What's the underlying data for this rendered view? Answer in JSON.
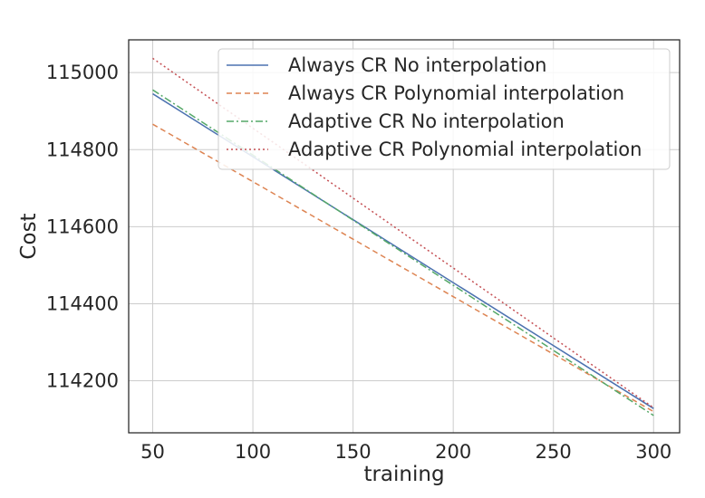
{
  "chart_data": {
    "type": "line",
    "title": "",
    "xlabel": "training",
    "ylabel": "Cost",
    "xlim": [
      38,
      313
    ],
    "ylim": [
      114065,
      115085
    ],
    "xticks": [
      50,
      100,
      150,
      200,
      250,
      300
    ],
    "yticks": [
      114200,
      114400,
      114600,
      114800,
      115000
    ],
    "grid": true,
    "legend_position": "top-right",
    "series": [
      {
        "name": "Always CR No interpolation",
        "color": "#4c72b0",
        "dash": "solid",
        "x": [
          50,
          300
        ],
        "y": [
          114945,
          114128
        ]
      },
      {
        "name": "Always CR Polynomial interpolation",
        "color": "#dd8452",
        "dash": "dashed",
        "x": [
          50,
          300
        ],
        "y": [
          114866,
          114120
        ]
      },
      {
        "name": "Adaptive CR No interpolation",
        "color": "#55a868",
        "dash": "dashdot",
        "x": [
          50,
          300
        ],
        "y": [
          114955,
          114110
        ]
      },
      {
        "name": "Adaptive CR Polynomial interpolation",
        "color": "#c44e52",
        "dash": "dotted",
        "x": [
          50,
          300
        ],
        "y": [
          115037,
          114130
        ]
      }
    ]
  }
}
